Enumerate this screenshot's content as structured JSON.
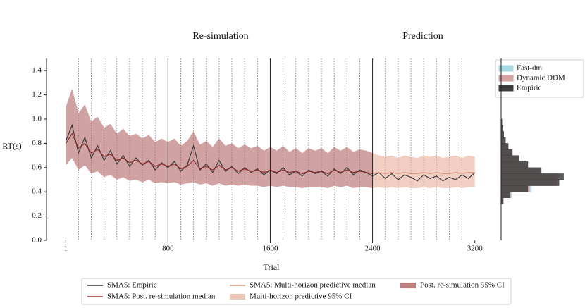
{
  "chart_data": [
    {
      "type": "line",
      "ylabel": "RT(s)",
      "xlabel": "Trial",
      "annotations": [
        "Re-simulation",
        "Prediction"
      ],
      "xlim": [
        -150,
        3400
      ],
      "ylim": [
        0,
        1.5
      ],
      "xticks": [
        1,
        800,
        1600,
        2400,
        3200
      ],
      "yticks": [
        {
          "value": 0,
          "label": "0.0"
        },
        {
          "value": 0.2,
          "label": "0.2"
        },
        {
          "value": 0.4,
          "label": "0.4"
        },
        {
          "value": 0.6,
          "label": "0.6"
        },
        {
          "value": 0.8,
          "label": "0.8"
        },
        {
          "value": 1.0,
          "label": "1.0"
        },
        {
          "value": 1.2,
          "label": "1.2"
        },
        {
          "value": 1.4,
          "label": "1.4"
        }
      ],
      "solid_vlines": [
        800,
        1600,
        2400
      ],
      "dotted_vlines": [
        100,
        200,
        300,
        400,
        500,
        600,
        700,
        900,
        1000,
        1100,
        1200,
        1300,
        1400,
        1500,
        1700,
        1800,
        1900,
        2000,
        2100,
        2200,
        2300,
        2500,
        2600,
        2700,
        2800,
        2900,
        3000,
        3100
      ],
      "x": [
        1,
        50,
        100,
        150,
        200,
        250,
        300,
        350,
        400,
        450,
        500,
        550,
        600,
        650,
        700,
        750,
        800,
        850,
        900,
        950,
        1000,
        1050,
        1100,
        1150,
        1200,
        1250,
        1300,
        1350,
        1400,
        1450,
        1500,
        1550,
        1600,
        1650,
        1700,
        1750,
        1800,
        1850,
        1900,
        1950,
        2000,
        2050,
        2100,
        2150,
        2200,
        2250,
        2300,
        2350,
        2400,
        2450,
        2500,
        2550,
        2600,
        2650,
        2700,
        2750,
        2800,
        2850,
        2900,
        2950,
        3000,
        3050,
        3100,
        3150,
        3200
      ],
      "series": [
        {
          "name": "SMA5: Empiric",
          "color": "#3d3d3d",
          "kind": "line",
          "values": [
            0.82,
            0.95,
            0.72,
            0.85,
            0.68,
            0.78,
            0.66,
            0.74,
            0.63,
            0.7,
            0.61,
            0.68,
            0.62,
            0.66,
            0.58,
            0.64,
            0.6,
            0.65,
            0.57,
            0.62,
            0.78,
            0.58,
            0.63,
            0.56,
            0.66,
            0.57,
            0.61,
            0.55,
            0.6,
            0.56,
            0.59,
            0.54,
            0.58,
            0.55,
            0.6,
            0.54,
            0.57,
            0.53,
            0.58,
            0.55,
            0.57,
            0.53,
            0.59,
            0.55,
            0.6,
            0.54,
            0.58,
            0.56,
            0.53,
            0.56,
            0.51,
            0.55,
            0.5,
            0.54,
            0.52,
            0.49,
            0.54,
            0.51,
            0.53,
            0.49,
            0.52,
            0.5,
            0.54,
            0.51,
            0.56
          ]
        },
        {
          "name": "SMA5: Post. re-simulation median",
          "color": "#8c2b2b",
          "kind": "line",
          "values": [
            0.8,
            0.88,
            0.76,
            0.8,
            0.72,
            0.75,
            0.69,
            0.71,
            0.66,
            0.68,
            0.64,
            0.66,
            0.63,
            0.65,
            0.61,
            0.63,
            0.61,
            0.63,
            0.59,
            0.61,
            0.66,
            0.59,
            0.61,
            0.58,
            0.62,
            0.58,
            0.6,
            0.57,
            0.59,
            0.57,
            0.58,
            0.56,
            0.58,
            0.56,
            0.58,
            0.56,
            0.57,
            0.55,
            0.57,
            0.56,
            0.57,
            0.55,
            0.58,
            0.56,
            0.58,
            0.56,
            0.57,
            0.56,
            0.55,
            null,
            null,
            null,
            null,
            null,
            null,
            null,
            null,
            null,
            null,
            null,
            null,
            null,
            null,
            null,
            null
          ]
        },
        {
          "name": "SMA5: Multi-horizon predictive median",
          "color": "#d9957f",
          "kind": "line",
          "values": [
            null,
            null,
            null,
            null,
            null,
            null,
            null,
            null,
            null,
            null,
            null,
            null,
            null,
            null,
            null,
            null,
            null,
            null,
            null,
            null,
            null,
            null,
            null,
            null,
            null,
            null,
            null,
            null,
            null,
            null,
            null,
            null,
            null,
            null,
            null,
            null,
            null,
            null,
            null,
            null,
            null,
            null,
            null,
            null,
            null,
            null,
            null,
            null,
            0.55,
            0.56,
            0.55,
            0.56,
            0.55,
            0.56,
            0.55,
            0.55,
            0.56,
            0.55,
            0.56,
            0.55,
            0.55,
            0.56,
            0.55,
            0.56,
            0.56
          ]
        },
        {
          "name": "Multi-horizon predictive 95% CI",
          "color": "#e8b4a0",
          "kind": "band",
          "lower": [
            null,
            null,
            null,
            null,
            null,
            null,
            null,
            null,
            null,
            null,
            null,
            null,
            null,
            null,
            null,
            null,
            null,
            null,
            null,
            null,
            null,
            null,
            null,
            null,
            null,
            null,
            null,
            null,
            null,
            null,
            null,
            null,
            null,
            null,
            null,
            null,
            null,
            null,
            null,
            null,
            null,
            null,
            null,
            null,
            null,
            null,
            null,
            null,
            0.43,
            0.44,
            0.43,
            0.44,
            0.43,
            0.44,
            0.43,
            0.43,
            0.44,
            0.43,
            0.44,
            0.43,
            0.43,
            0.44,
            0.43,
            0.44,
            0.44
          ],
          "upper": [
            null,
            null,
            null,
            null,
            null,
            null,
            null,
            null,
            null,
            null,
            null,
            null,
            null,
            null,
            null,
            null,
            null,
            null,
            null,
            null,
            null,
            null,
            null,
            null,
            null,
            null,
            null,
            null,
            null,
            null,
            null,
            null,
            null,
            null,
            null,
            null,
            null,
            null,
            null,
            null,
            null,
            null,
            null,
            null,
            null,
            null,
            null,
            null,
            0.72,
            0.7,
            0.69,
            0.7,
            0.68,
            0.7,
            0.69,
            0.68,
            0.7,
            0.69,
            0.7,
            0.68,
            0.69,
            0.7,
            0.68,
            0.7,
            0.69
          ]
        },
        {
          "name": "Post. re-simulation 95% CI",
          "color": "#b87070",
          "kind": "band",
          "lower": [
            0.62,
            0.68,
            0.58,
            0.62,
            0.55,
            0.57,
            0.52,
            0.54,
            0.5,
            0.52,
            0.49,
            0.5,
            0.48,
            0.5,
            0.47,
            0.48,
            0.47,
            0.48,
            0.46,
            0.47,
            0.48,
            0.46,
            0.47,
            0.45,
            0.47,
            0.45,
            0.46,
            0.45,
            0.46,
            0.45,
            0.45,
            0.44,
            0.45,
            0.44,
            0.45,
            0.44,
            0.44,
            0.43,
            0.44,
            0.44,
            0.44,
            0.43,
            0.45,
            0.44,
            0.45,
            0.43,
            0.44,
            0.44,
            0.43,
            null,
            null,
            null,
            null,
            null,
            null,
            null,
            null,
            null,
            null,
            null,
            null,
            null,
            null,
            null,
            null
          ],
          "upper": [
            1.1,
            1.25,
            1.05,
            1.12,
            0.98,
            1.02,
            0.93,
            0.96,
            0.88,
            0.92,
            0.86,
            0.88,
            0.84,
            0.87,
            0.81,
            0.84,
            0.81,
            0.84,
            0.78,
            0.82,
            0.9,
            0.79,
            0.82,
            0.77,
            0.84,
            0.78,
            0.8,
            0.76,
            0.79,
            0.76,
            0.78,
            0.74,
            0.77,
            0.74,
            0.78,
            0.73,
            0.76,
            0.72,
            0.76,
            0.74,
            0.76,
            0.72,
            0.77,
            0.74,
            0.77,
            0.73,
            0.75,
            0.74,
            0.72,
            null,
            null,
            null,
            null,
            null,
            null,
            null,
            null,
            null,
            null,
            null,
            null,
            null,
            null,
            null,
            null
          ]
        }
      ]
    },
    {
      "type": "histogram",
      "orientation": "horizontal",
      "ylim": [
        0,
        1.5
      ],
      "xlim": [
        0,
        7.5
      ],
      "bins": [
        0.3,
        0.35,
        0.4,
        0.45,
        0.5,
        0.55,
        0.6,
        0.65,
        0.7,
        0.75,
        0.8,
        0.85,
        0.9,
        0.95,
        1.0
      ],
      "series": [
        {
          "name": "Fast-dm",
          "color": "#a8d8e0",
          "values": [
            0.2,
            1.2,
            3.4,
            5.8,
            6.0,
            4.3,
            2.9,
            1.9,
            1.2,
            0.8,
            0.5,
            0.3,
            0.2,
            0.1
          ]
        },
        {
          "name": "Dynamic DDM",
          "color": "#d4a3a3",
          "values": [
            0.3,
            1.1,
            3.2,
            6.2,
            6.4,
            4.4,
            3.0,
            2.0,
            1.3,
            0.8,
            0.5,
            0.3,
            0.2,
            0.1
          ]
        },
        {
          "name": "Empiric",
          "color": "#3d3d3d",
          "values": [
            0.2,
            1.0,
            3.0,
            6.5,
            7.0,
            4.5,
            3.0,
            2.0,
            1.2,
            0.8,
            0.5,
            0.3,
            0.2,
            0.1
          ]
        }
      ]
    }
  ]
}
